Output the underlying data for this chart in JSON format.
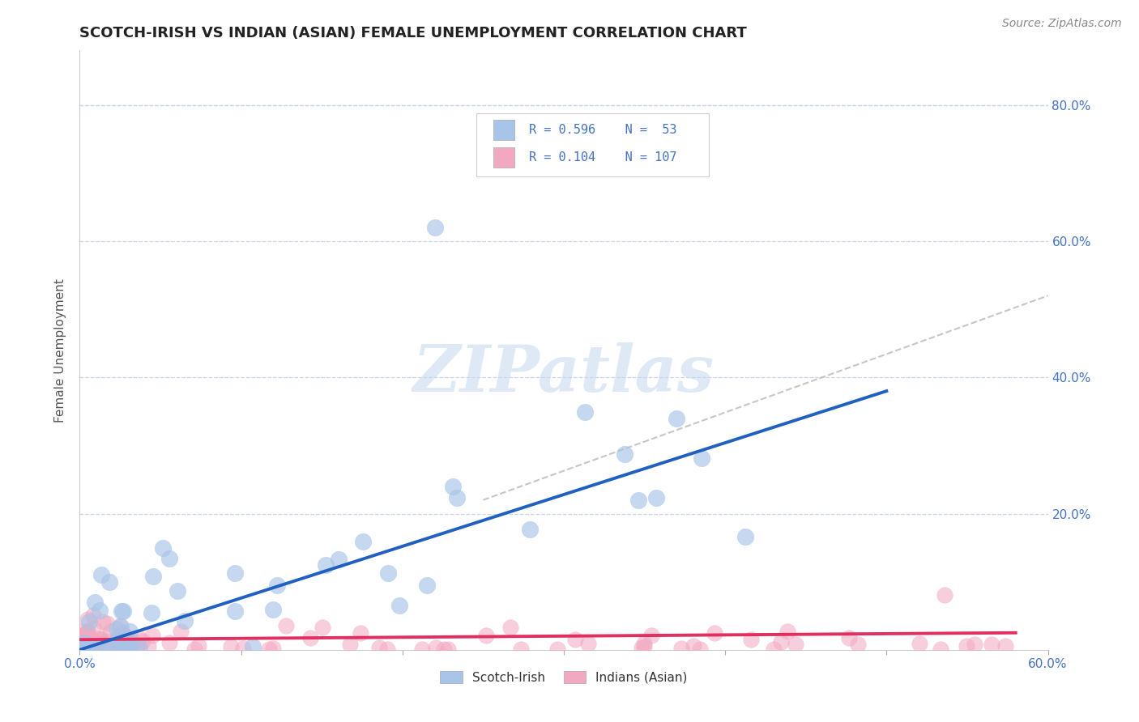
{
  "title": "SCOTCH-IRISH VS INDIAN (ASIAN) FEMALE UNEMPLOYMENT CORRELATION CHART",
  "source": "Source: ZipAtlas.com",
  "ylabel": "Female Unemployment",
  "scotch_irish_R": 0.596,
  "scotch_irish_N": 53,
  "indians_R": 0.104,
  "indians_N": 107,
  "scotch_irish_color": "#a8c4e8",
  "indians_color": "#f2a8c0",
  "scotch_irish_line_color": "#2060c0",
  "indians_line_color": "#e03060",
  "diagonal_line_color": "#b8b8b8",
  "background_color": "#ffffff",
  "grid_color": "#c8d4e8",
  "xlim": [
    0,
    0.6
  ],
  "ylim": [
    0,
    0.88
  ],
  "yticks": [
    0.2,
    0.4,
    0.6,
    0.8
  ],
  "ytick_labels": [
    "20.0%",
    "40.0%",
    "60.0%",
    "80.0%"
  ],
  "xtick_labels": [
    "0.0%",
    "60.0%"
  ],
  "watermark_text": "ZIPatlas",
  "legend_label_1": "Scotch-Irish",
  "legend_label_2": "Indians (Asian)"
}
